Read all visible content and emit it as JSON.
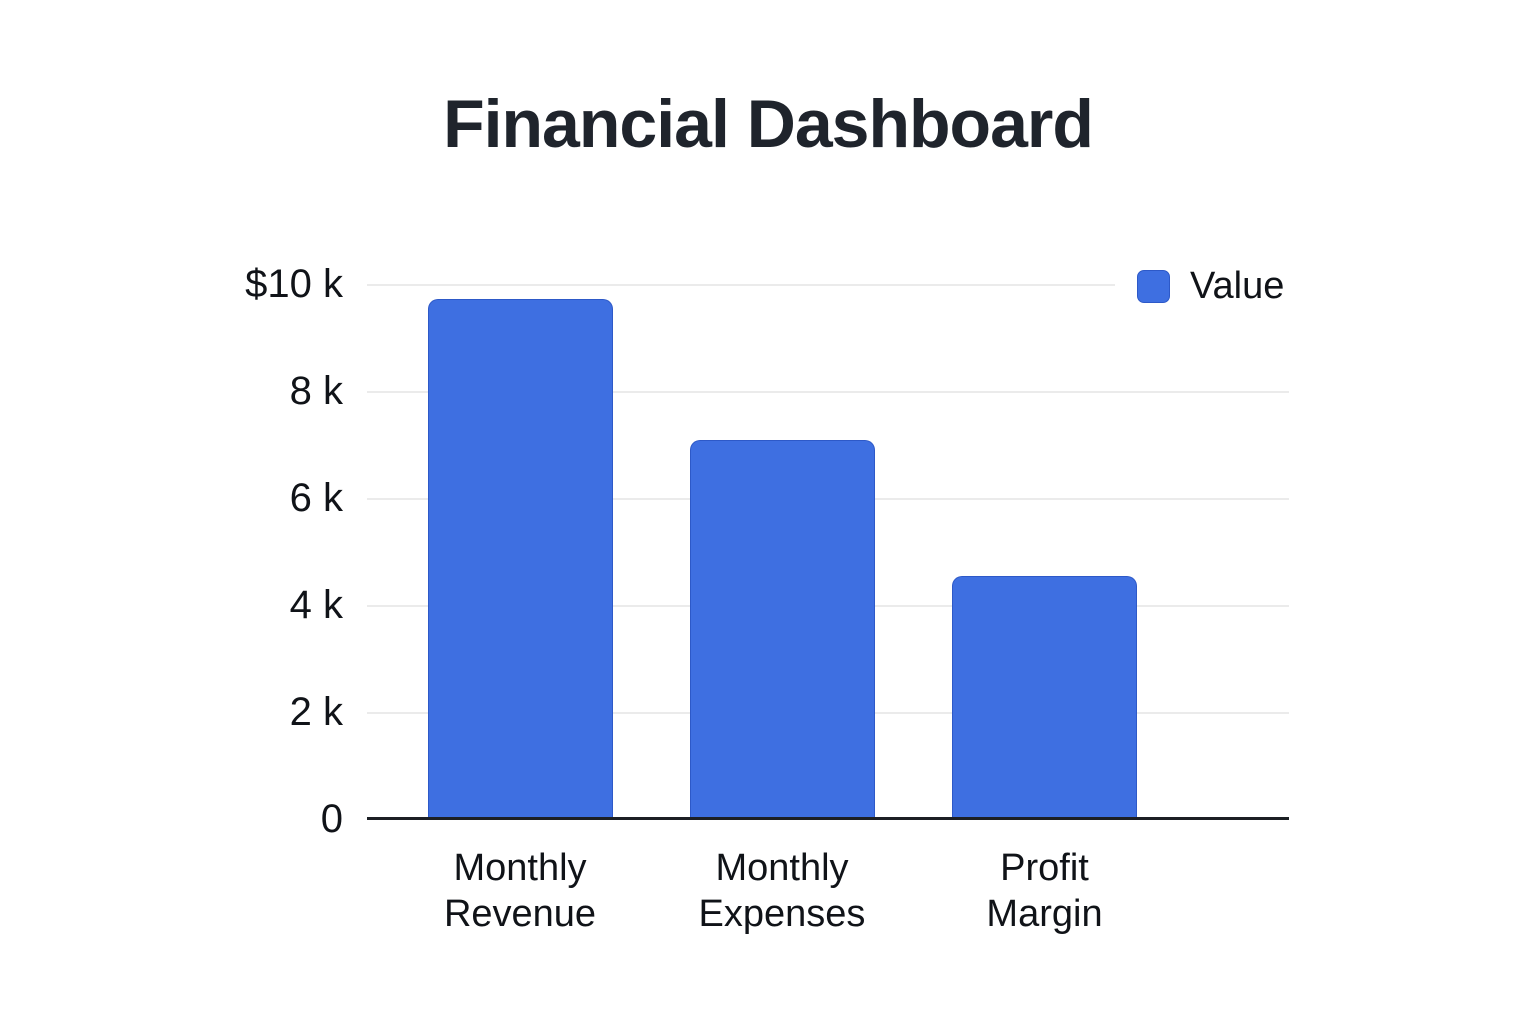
{
  "title": "Financial Dashboard",
  "legend": {
    "label": "Value"
  },
  "chart_data": {
    "type": "bar",
    "title": "Financial Dashboard",
    "categories": [
      "Monthly Revenue",
      "Monthly Expenses",
      "Profit Margin"
    ],
    "categories_wrapped": [
      [
        "Monthly",
        "Revenue"
      ],
      [
        "Monthly",
        "Expenses"
      ],
      [
        "Profit",
        "Margin"
      ]
    ],
    "series": [
      {
        "name": "Value",
        "values": [
          9720,
          7080,
          4540
        ]
      }
    ],
    "xlabel": "",
    "ylabel": "",
    "y_axis": {
      "min": 0,
      "max": 10000,
      "tick_values": [
        10000,
        8000,
        6000,
        4000,
        2000,
        0
      ],
      "tick_labels": [
        "$10 k",
        "8 k",
        "6 k",
        "4 k",
        "2 k",
        "0"
      ]
    },
    "grid": true,
    "legend_position": "top-right",
    "colors": {
      "bar": "#3e6fe1",
      "bar_border": "#2d59c8",
      "gridline": "#ebebeb",
      "axis": "#1c1f24",
      "title_text": "#1f242c",
      "label_text": "#101318",
      "background": "#ffffff"
    }
  }
}
